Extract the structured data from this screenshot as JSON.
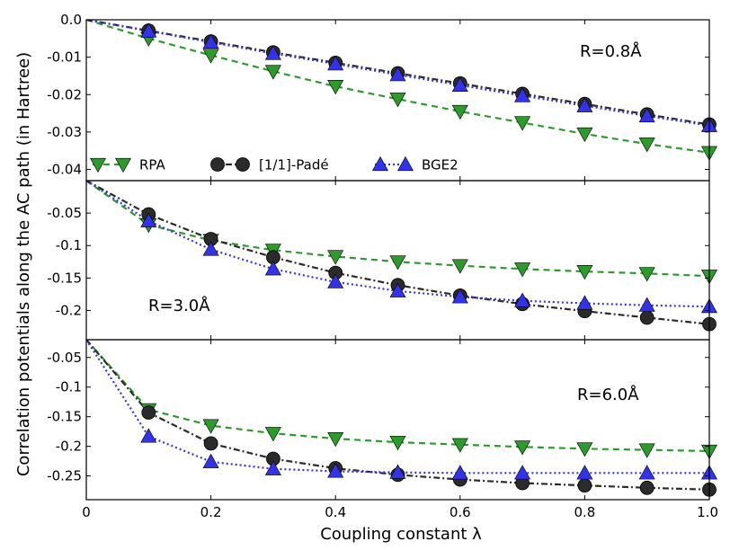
{
  "chart_data": {
    "type": "line",
    "xlabel": "Coupling constant λ",
    "ylabel": "Correlation potentials along the AC path (in Hartree)",
    "x_ticks": [
      "0",
      "0.2",
      "0.4",
      "0.6",
      "0.8",
      "1.0"
    ],
    "xlim": [
      0,
      1.0
    ],
    "legend": [
      {
        "key": "rpa",
        "label": "RPA"
      },
      {
        "key": "pade",
        "label": "[1/1]-Padé"
      },
      {
        "key": "bge2",
        "label": "BGE2"
      }
    ],
    "colors": {
      "rpa": "#2e9a2e",
      "pade": "#2b2b2b",
      "bge2": "#3333e6"
    },
    "panels": [
      {
        "annotation": "R=0.8Å",
        "ylim": [
          -0.043,
          0.0
        ],
        "y_ticks": [
          {
            "v": 0.0,
            "t": "0.0"
          },
          {
            "v": -0.01,
            "t": "-0.01"
          },
          {
            "v": -0.02,
            "t": "-0.02"
          },
          {
            "v": -0.03,
            "t": "-0.03"
          },
          {
            "v": -0.04,
            "t": "-0.04"
          }
        ],
        "series": [
          {
            "key": "rpa",
            "x": [
              0,
              0.1,
              0.2,
              0.3,
              0.4,
              0.5,
              0.6,
              0.7,
              0.8,
              0.9,
              1.0
            ],
            "y": [
              0,
              -0.005,
              -0.0095,
              -0.0138,
              -0.0178,
              -0.0212,
              -0.0245,
              -0.0275,
              -0.0305,
              -0.0332,
              -0.0355
            ]
          },
          {
            "key": "pade",
            "x": [
              0,
              0.1,
              0.2,
              0.3,
              0.4,
              0.5,
              0.6,
              0.7,
              0.8,
              0.9,
              1.0
            ],
            "y": [
              0,
              -0.0029,
              -0.0058,
              -0.0087,
              -0.0115,
              -0.0143,
              -0.017,
              -0.0198,
              -0.0225,
              -0.0253,
              -0.028
            ]
          },
          {
            "key": "bge2",
            "x": [
              0,
              0.1,
              0.2,
              0.3,
              0.4,
              0.5,
              0.6,
              0.7,
              0.8,
              0.9,
              1.0
            ],
            "y": [
              0,
              -0.003,
              -0.006,
              -0.009,
              -0.0118,
              -0.0147,
              -0.0175,
              -0.0203,
              -0.023,
              -0.0257,
              -0.0283
            ]
          }
        ]
      },
      {
        "annotation": "R=3.0Å",
        "ylim": [
          -0.245,
          0.0
        ],
        "y_ticks": [
          {
            "v": -0.05,
            "t": "-0.05"
          },
          {
            "v": -0.1,
            "t": "-0.1"
          },
          {
            "v": -0.15,
            "t": "-0.15"
          },
          {
            "v": -0.2,
            "t": "-0.2"
          }
        ],
        "series": [
          {
            "key": "rpa",
            "x": [
              0,
              0.1,
              0.2,
              0.3,
              0.4,
              0.5,
              0.6,
              0.7,
              0.8,
              0.9,
              1.0
            ],
            "y": [
              0,
              -0.068,
              -0.092,
              -0.107,
              -0.117,
              -0.125,
              -0.131,
              -0.136,
              -0.14,
              -0.143,
              -0.147
            ]
          },
          {
            "key": "pade",
            "x": [
              0,
              0.1,
              0.2,
              0.3,
              0.4,
              0.5,
              0.6,
              0.7,
              0.8,
              0.9,
              1.0
            ],
            "y": [
              0,
              -0.052,
              -0.09,
              -0.118,
              -0.142,
              -0.161,
              -0.177,
              -0.19,
              -0.201,
              -0.211,
              -0.221
            ]
          },
          {
            "key": "bge2",
            "x": [
              0,
              0.1,
              0.2,
              0.3,
              0.4,
              0.5,
              0.6,
              0.7,
              0.8,
              0.9,
              1.0
            ],
            "y": [
              0,
              -0.062,
              -0.106,
              -0.136,
              -0.156,
              -0.17,
              -0.179,
              -0.185,
              -0.189,
              -0.192,
              -0.194
            ]
          }
        ]
      },
      {
        "annotation": "R=6.0Å",
        "ylim": [
          -0.29,
          -0.02
        ],
        "y_ticks": [
          {
            "v": -0.05,
            "t": "-0.05"
          },
          {
            "v": -0.1,
            "t": "-0.1"
          },
          {
            "v": -0.15,
            "t": "-0.15"
          },
          {
            "v": -0.2,
            "t": "-0.2"
          },
          {
            "v": -0.25,
            "t": "-0.25"
          }
        ],
        "series": [
          {
            "key": "rpa",
            "x": [
              0,
              0.1,
              0.2,
              0.3,
              0.4,
              0.5,
              0.6,
              0.7,
              0.8,
              0.9,
              1.0
            ],
            "y": [
              -0.02,
              -0.138,
              -0.165,
              -0.178,
              -0.187,
              -0.193,
              -0.197,
              -0.201,
              -0.204,
              -0.206,
              -0.208
            ]
          },
          {
            "key": "pade",
            "x": [
              0,
              0.1,
              0.2,
              0.3,
              0.4,
              0.5,
              0.6,
              0.7,
              0.8,
              0.9,
              1.0
            ],
            "y": [
              -0.02,
              -0.143,
              -0.195,
              -0.221,
              -0.237,
              -0.248,
              -0.256,
              -0.262,
              -0.266,
              -0.27,
              -0.273
            ]
          },
          {
            "key": "bge2",
            "x": [
              0,
              0.1,
              0.2,
              0.3,
              0.4,
              0.5,
              0.6,
              0.7,
              0.8,
              0.9,
              1.0
            ],
            "y": [
              -0.02,
              -0.183,
              -0.226,
              -0.238,
              -0.242,
              -0.244,
              -0.245,
              -0.245,
              -0.245,
              -0.245,
              -0.245
            ]
          }
        ]
      }
    ]
  }
}
